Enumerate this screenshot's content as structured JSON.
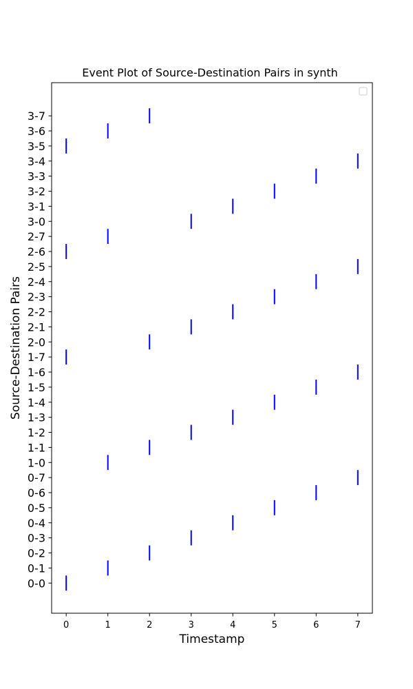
{
  "chart_data": {
    "type": "eventplot",
    "title": "Event Plot of Source-Destination Pairs in synth",
    "xlabel": "Timestamp",
    "ylabel": "Source-Destination Pairs",
    "xlim": [
      -0.35,
      7.35
    ],
    "ylim": [
      -2,
      33.2
    ],
    "x_ticks": [
      0,
      1,
      2,
      3,
      4,
      5,
      6,
      7
    ],
    "y_categories": [
      "0-0",
      "0-1",
      "0-2",
      "0-3",
      "0-4",
      "0-5",
      "0-6",
      "0-7",
      "1-0",
      "1-1",
      "1-2",
      "1-3",
      "1-4",
      "1-5",
      "1-6",
      "1-7",
      "2-0",
      "2-1",
      "2-2",
      "2-3",
      "2-4",
      "2-5",
      "2-6",
      "2-7",
      "3-0",
      "3-1",
      "3-2",
      "3-3",
      "3-4",
      "3-5",
      "3-6",
      "3-7"
    ],
    "event_timestamps": [
      0,
      1,
      2,
      3,
      4,
      5,
      6,
      7,
      1,
      2,
      3,
      4,
      5,
      6,
      7,
      0,
      2,
      3,
      4,
      5,
      6,
      7,
      0,
      1,
      3,
      4,
      5,
      6,
      7,
      0,
      1,
      2
    ],
    "line_color": "#0000ff",
    "grid": false,
    "legend": {
      "placement": "upper right",
      "entries": []
    }
  }
}
